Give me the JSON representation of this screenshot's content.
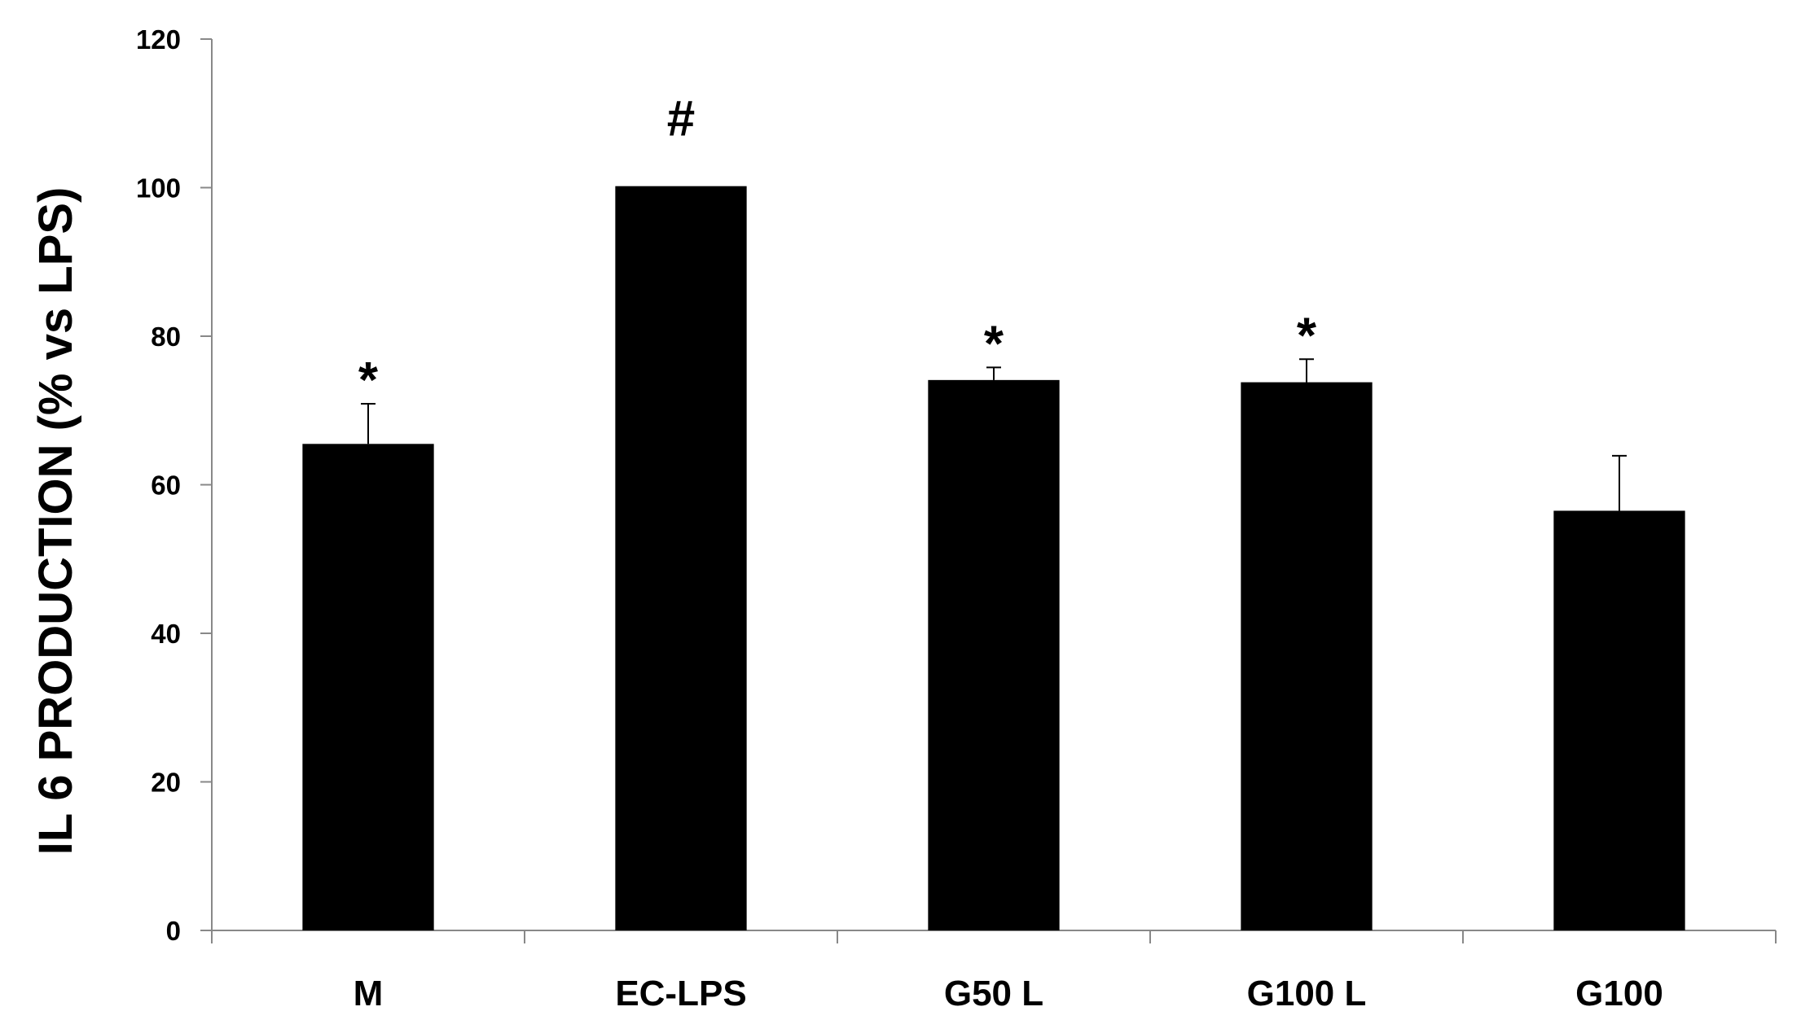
{
  "chart_data": {
    "type": "bar",
    "title": "",
    "xlabel": "",
    "ylabel": "IL 6 PRODUCTION (% vs LPS)",
    "ylim": [
      0,
      120
    ],
    "yticks": [
      0,
      20,
      40,
      60,
      80,
      100,
      120
    ],
    "categories": [
      "M",
      "EC-LPS",
      "G50 L",
      "G100 L",
      "G100"
    ],
    "values": [
      65.5,
      100.2,
      74.1,
      73.8,
      56.5
    ],
    "error_upper": [
      5.4,
      0,
      1.7,
      3.1,
      7.4
    ],
    "annotations": [
      "*",
      "#",
      "*",
      "*",
      ""
    ],
    "bar_color": "#000000",
    "grid": false,
    "legend": "none"
  }
}
